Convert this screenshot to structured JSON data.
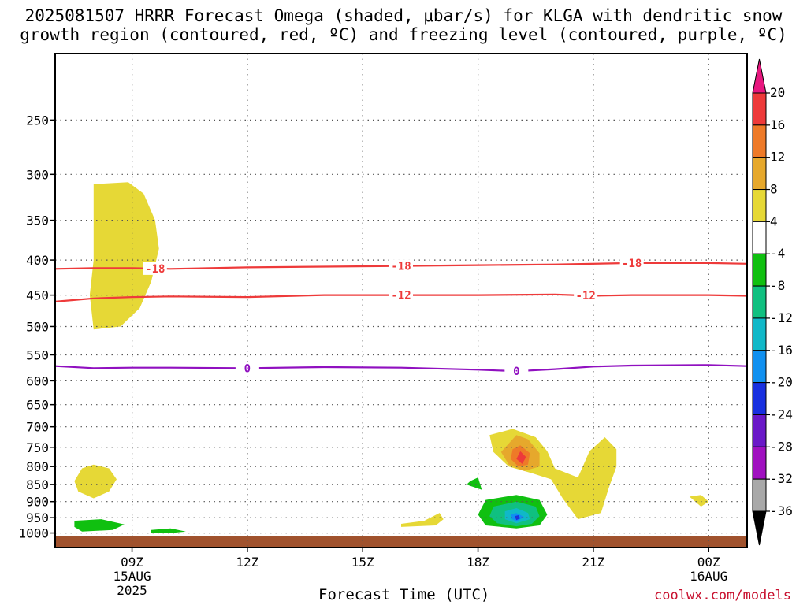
{
  "title_line1": "2025081507 HRRR Forecast Omega (shaded, μbar/s) for KLGA with dendritic snow",
  "title_line2": "growth region (contoured, red, ºC) and freezing level (contoured, purple, ºC)",
  "credit": "coolwx.com/models",
  "chart_data": {
    "type": "contour",
    "title": "2025081507 HRRR Forecast Omega (shaded, μbar/s) for KLGA with dendritic snow growth region (contoured, red, ºC) and freezing level (contoured, purple, ºC)",
    "xlabel": "Forecast Time (UTC)",
    "ylabel": "",
    "y_scale": "log",
    "y_inverted": true,
    "ylim": [
      200,
      1050
    ],
    "xlim_hours": [
      7,
      25
    ],
    "y_ticks": [
      250,
      300,
      350,
      400,
      450,
      500,
      550,
      600,
      650,
      700,
      750,
      800,
      850,
      900,
      950,
      1000
    ],
    "x_ticks": [
      {
        "hour": 9,
        "label": "09Z",
        "sub": [
          "15AUG",
          "2025"
        ]
      },
      {
        "hour": 12,
        "label": "12Z",
        "sub": []
      },
      {
        "hour": 15,
        "label": "15Z",
        "sub": []
      },
      {
        "hour": 18,
        "label": "18Z",
        "sub": []
      },
      {
        "hour": 21,
        "label": "21Z",
        "sub": []
      },
      {
        "hour": 24,
        "label": "00Z",
        "sub": [
          "16AUG"
        ]
      }
    ],
    "grid": true,
    "colorbar": {
      "labels": [
        "20",
        "16",
        "12",
        "8",
        "4",
        "-4",
        "-8",
        "-12",
        "-16",
        "-20",
        "-24",
        "-28",
        "-32",
        "-36"
      ],
      "colors_top_to_bottom": [
        "#e8177f",
        "#ee3a3a",
        "#ee7a28",
        "#e6a82c",
        "#e6d836",
        "#ffffff",
        "#10c010",
        "#10c080",
        "#10b8c8",
        "#1090f0",
        "#1830e0",
        "#6a18c8",
        "#a010c0",
        "#a8a8a8",
        "#000000"
      ]
    },
    "contour_lines": [
      {
        "name": "-18",
        "color": "#ee3a3a",
        "points": [
          [
            7,
            412
          ],
          [
            8,
            411
          ],
          [
            9,
            411
          ],
          [
            10,
            412
          ],
          [
            12,
            410
          ],
          [
            14,
            409
          ],
          [
            16,
            408
          ],
          [
            18,
            407
          ],
          [
            20,
            406
          ],
          [
            22,
            404
          ],
          [
            24,
            404
          ],
          [
            25,
            405
          ]
        ],
        "labels_at_hours": [
          9.6,
          16.0,
          22.0
        ]
      },
      {
        "name": "-12",
        "color": "#ee3a3a",
        "points": [
          [
            7,
            460
          ],
          [
            8,
            455
          ],
          [
            9,
            453
          ],
          [
            10,
            452
          ],
          [
            12,
            453
          ],
          [
            14,
            450
          ],
          [
            16,
            450
          ],
          [
            18,
            450
          ],
          [
            20,
            449
          ],
          [
            21,
            451
          ],
          [
            22,
            450
          ],
          [
            24,
            450
          ],
          [
            25,
            451
          ]
        ],
        "labels_at_hours": [
          16.0,
          20.8
        ]
      },
      {
        "name": "0",
        "color": "#9010c0",
        "points": [
          [
            7,
            571
          ],
          [
            8,
            575
          ],
          [
            9,
            574
          ],
          [
            10,
            574
          ],
          [
            12,
            575
          ],
          [
            14,
            573
          ],
          [
            16,
            574
          ],
          [
            18,
            578
          ],
          [
            19,
            581
          ],
          [
            20,
            577
          ],
          [
            21,
            572
          ],
          [
            22,
            570
          ],
          [
            24,
            569
          ],
          [
            25,
            571
          ]
        ],
        "labels_at_hours": [
          12.0,
          19.0
        ]
      }
    ],
    "omega_regions": [
      {
        "level": "4",
        "color": "#e6d836",
        "points": [
          [
            8.0,
            310
          ],
          [
            8.9,
            308
          ],
          [
            9.3,
            320
          ],
          [
            9.6,
            350
          ],
          [
            9.7,
            385
          ],
          [
            9.5,
            430
          ],
          [
            9.2,
            470
          ],
          [
            8.7,
            500
          ],
          [
            8.0,
            505
          ],
          [
            7.9,
            450
          ],
          [
            8.0,
            400
          ]
        ]
      },
      {
        "level": "4",
        "color": "#e6d836",
        "points": [
          [
            8.0,
            795
          ],
          [
            8.4,
            805
          ],
          [
            8.6,
            835
          ],
          [
            8.4,
            870
          ],
          [
            8.0,
            890
          ],
          [
            7.6,
            870
          ],
          [
            7.5,
            840
          ],
          [
            7.7,
            805
          ]
        ]
      },
      {
        "level": "4",
        "color": "#e6d836",
        "points": [
          [
            18.3,
            720
          ],
          [
            18.9,
            705
          ],
          [
            19.5,
            725
          ],
          [
            19.8,
            760
          ],
          [
            20.0,
            805
          ],
          [
            20.6,
            830
          ],
          [
            20.9,
            760
          ],
          [
            21.3,
            725
          ],
          [
            21.6,
            755
          ],
          [
            21.6,
            800
          ],
          [
            21.4,
            860
          ],
          [
            21.2,
            935
          ],
          [
            20.6,
            955
          ],
          [
            20.2,
            890
          ],
          [
            19.9,
            835
          ],
          [
            19.4,
            818
          ],
          [
            18.8,
            800
          ],
          [
            18.4,
            762
          ]
        ]
      },
      {
        "level": "4",
        "color": "#e6d836",
        "points": [
          [
            16.0,
            970
          ],
          [
            16.6,
            960
          ],
          [
            17.0,
            935
          ],
          [
            17.1,
            955
          ],
          [
            16.9,
            975
          ],
          [
            16.0,
            980
          ]
        ]
      },
      {
        "level": "4",
        "color": "#e6d836",
        "points": [
          [
            23.5,
            885
          ],
          [
            23.8,
            880
          ],
          [
            24.0,
            900
          ],
          [
            23.8,
            915
          ]
        ]
      },
      {
        "level": "8",
        "color": "#e6a82c",
        "points": [
          [
            19.0,
            720
          ],
          [
            19.3,
            730
          ],
          [
            19.6,
            765
          ],
          [
            19.6,
            800
          ],
          [
            19.2,
            812
          ],
          [
            18.8,
            795
          ],
          [
            18.6,
            762
          ]
        ]
      },
      {
        "level": "12",
        "color": "#ee7a28",
        "points": [
          [
            19.1,
            745
          ],
          [
            19.35,
            765
          ],
          [
            19.3,
            795
          ],
          [
            19.05,
            800
          ],
          [
            18.85,
            780
          ],
          [
            18.9,
            755
          ]
        ]
      },
      {
        "level": "16",
        "color": "#ee3a3a",
        "points": [
          [
            19.1,
            760
          ],
          [
            19.25,
            775
          ],
          [
            19.15,
            793
          ],
          [
            19.0,
            780
          ]
        ]
      },
      {
        "level": "-4",
        "color": "#10c010",
        "points": [
          [
            7.5,
            960
          ],
          [
            8.2,
            955
          ],
          [
            8.8,
            972
          ],
          [
            8.5,
            990
          ],
          [
            7.7,
            995
          ],
          [
            7.5,
            980
          ]
        ]
      },
      {
        "level": "-4",
        "color": "#10c010",
        "points": [
          [
            9.5,
            990
          ],
          [
            10.0,
            985
          ],
          [
            10.4,
            995
          ],
          [
            10.0,
            1000
          ],
          [
            9.5,
            1000
          ]
        ]
      },
      {
        "level": "-4",
        "color": "#10c010",
        "points": [
          [
            17.8,
            840
          ],
          [
            18.0,
            830
          ],
          [
            18.1,
            865
          ],
          [
            17.7,
            850
          ]
        ]
      },
      {
        "level": "-4",
        "color": "#10c010",
        "points": [
          [
            18.2,
            895
          ],
          [
            19.0,
            880
          ],
          [
            19.6,
            895
          ],
          [
            19.8,
            940
          ],
          [
            19.6,
            975
          ],
          [
            19.0,
            985
          ],
          [
            18.2,
            975
          ],
          [
            18.0,
            940
          ]
        ]
      },
      {
        "level": "-8",
        "color": "#10c080",
        "points": [
          [
            18.4,
            915
          ],
          [
            19.0,
            900
          ],
          [
            19.5,
            915
          ],
          [
            19.6,
            945
          ],
          [
            19.4,
            970
          ],
          [
            19.0,
            978
          ],
          [
            18.5,
            968
          ],
          [
            18.3,
            945
          ]
        ]
      },
      {
        "level": "-12",
        "color": "#10b8c8",
        "points": [
          [
            18.7,
            930
          ],
          [
            19.0,
            920
          ],
          [
            19.3,
            935
          ],
          [
            19.35,
            955
          ],
          [
            19.0,
            968
          ],
          [
            18.7,
            955
          ]
        ]
      },
      {
        "level": "-16",
        "color": "#1090f0",
        "points": [
          [
            18.85,
            940
          ],
          [
            19.0,
            935
          ],
          [
            19.2,
            948
          ],
          [
            19.0,
            962
          ],
          [
            18.85,
            952
          ]
        ]
      },
      {
        "level": "-20",
        "color": "#1830e0",
        "points": [
          [
            18.95,
            945
          ],
          [
            19.05,
            942
          ],
          [
            19.1,
            952
          ],
          [
            19.0,
            958
          ]
        ]
      }
    ],
    "terrain": {
      "color": "#a0522d",
      "top_level": 1010
    }
  }
}
